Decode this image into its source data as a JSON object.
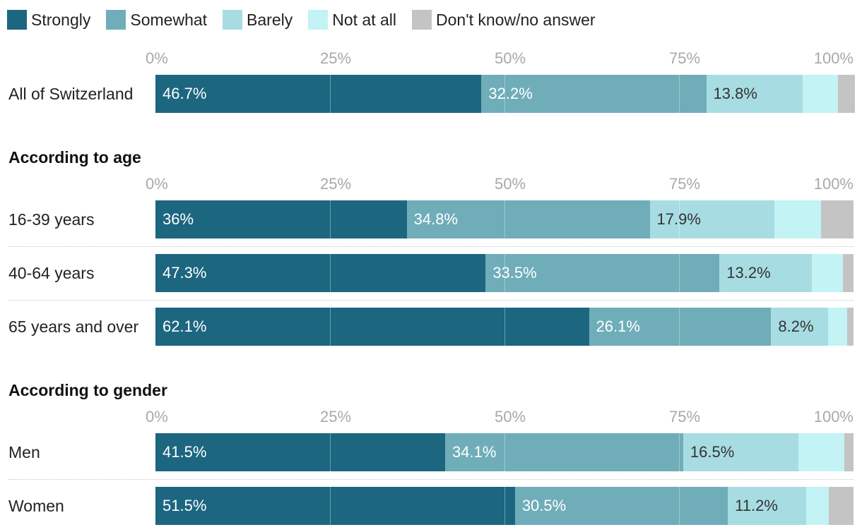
{
  "chart_data": {
    "type": "bar",
    "orientation": "horizontal",
    "stacked": true,
    "xlim": [
      0,
      100
    ],
    "ticks": [
      "0%",
      "25%",
      "50%",
      "75%",
      "100%"
    ],
    "legend": [
      "Strongly",
      "Somewhat",
      "Barely",
      "Not at all",
      "Don't know/no answer"
    ],
    "colors": [
      "#1c6680",
      "#6fadb9",
      "#a7dde2",
      "#c3f3f4",
      "#c4c4c4"
    ],
    "label_colors": [
      "#ffffff",
      "#ffffff",
      "#333333",
      "#333333",
      "#333333"
    ],
    "groups": [
      {
        "title": "",
        "rows": [
          {
            "label": "All of Switzerland",
            "values": [
              46.7,
              32.2,
              13.8,
              5.1,
              2.4
            ],
            "value_labels": [
              "46.7%",
              "32.2%",
              "13.8%",
              "",
              ""
            ]
          }
        ]
      },
      {
        "title": "According to age",
        "rows": [
          {
            "label": "16-39 years",
            "values": [
              36,
              34.8,
              17.9,
              6.6,
              4.7
            ],
            "value_labels": [
              "36%",
              "34.8%",
              "17.9%",
              "",
              ""
            ]
          },
          {
            "label": "40-64 years",
            "values": [
              47.3,
              33.5,
              13.2,
              4.5,
              1.5
            ],
            "value_labels": [
              "47.3%",
              "33.5%",
              "13.2%",
              "",
              ""
            ]
          },
          {
            "label": "65 years and over",
            "values": [
              62.1,
              26.1,
              8.2,
              2.7,
              0.9
            ],
            "value_labels": [
              "62.1%",
              "26.1%",
              "8.2%",
              "",
              ""
            ]
          }
        ]
      },
      {
        "title": "According to gender",
        "rows": [
          {
            "label": "Men",
            "values": [
              41.5,
              34.1,
              16.5,
              6.6,
              1.3
            ],
            "value_labels": [
              "41.5%",
              "34.1%",
              "16.5%",
              "",
              ""
            ]
          },
          {
            "label": "Women",
            "values": [
              51.5,
              30.5,
              11.2,
              3.3,
              3.5
            ],
            "value_labels": [
              "51.5%",
              "30.5%",
              "11.2%",
              "",
              ""
            ]
          }
        ]
      }
    ]
  }
}
